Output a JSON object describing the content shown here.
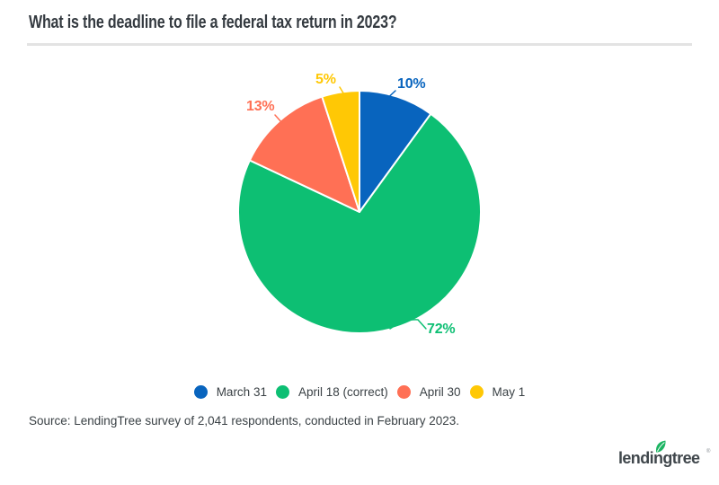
{
  "title": "What is the deadline to file a federal tax return in 2023?",
  "chart_data": {
    "type": "pie",
    "title": "What is the deadline to file a federal tax return in 2023?",
    "categories": [
      "March 31",
      "April 18 (correct)",
      "April 30",
      "May 1"
    ],
    "values": [
      10,
      72,
      13,
      5
    ],
    "labels": [
      "10%",
      "72%",
      "13%",
      "5%"
    ],
    "colors": [
      "#0864BE",
      "#0DBF73",
      "#FF7055",
      "#FFC805"
    ],
    "start_angle_deg": -90,
    "direction": "clockwise",
    "legend_position": "bottom",
    "slice_stroke_color": "#ffffff"
  },
  "source": "Source: LendingTree survey of 2,041 respondents, conducted in February 2023.",
  "logo": {
    "text": "lendingtree",
    "registered": "®",
    "leaf_color": "#1CB462",
    "text_color": "#40474C"
  },
  "ui_colors": {
    "background": "#FFFFFF",
    "title_text": "#343A40",
    "body_text": "#3A4145",
    "divider": "#E3E3E3"
  }
}
